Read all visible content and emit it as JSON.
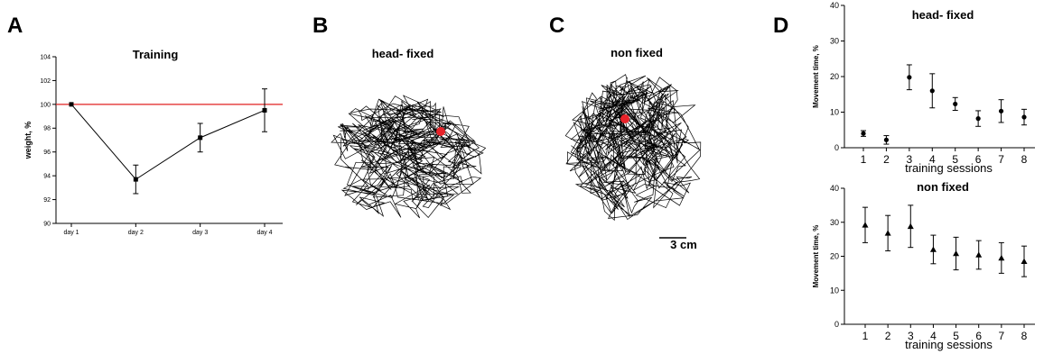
{
  "panels": {
    "A": {
      "letter": "A"
    },
    "B": {
      "letter": "B",
      "title": "head- fixed"
    },
    "C": {
      "letter": "C",
      "title": "non fixed",
      "scale_bar_label": "3 cm"
    },
    "D": {
      "letter": "D"
    }
  },
  "chart_data": [
    {
      "id": "A",
      "type": "line",
      "title": "Training",
      "xlabel": "",
      "ylabel": "weight, %",
      "categories": [
        "day 1",
        "day 2",
        "day 3",
        "day 4"
      ],
      "ylim": [
        90,
        104
      ],
      "yticks": [
        90,
        92,
        94,
        96,
        98,
        100,
        102,
        104
      ],
      "series": [
        {
          "values": [
            100,
            93.7,
            97.2,
            99.5
          ],
          "errors": [
            0,
            1.2,
            1.2,
            1.8
          ]
        }
      ],
      "reference_line": {
        "y": 100,
        "color": "#e02020"
      },
      "marker": "square",
      "grid": false
    },
    {
      "id": "D-top",
      "type": "scatter",
      "title": "head- fixed",
      "xlabel": "training sessions",
      "ylabel": "Movement time, %",
      "categories": [
        "1",
        "2",
        "3",
        "4",
        "5",
        "6",
        "7",
        "8"
      ],
      "ylim": [
        0,
        40
      ],
      "yticks": [
        0,
        10,
        20,
        30,
        40
      ],
      "series": [
        {
          "values": [
            4,
            2.2,
            19.8,
            16,
            12.3,
            8.2,
            10.3,
            8.6
          ],
          "errors": [
            0.8,
            1.2,
            3.5,
            4.8,
            1.8,
            2.2,
            3.2,
            2.2
          ]
        }
      ],
      "marker": "circle",
      "grid": false
    },
    {
      "id": "D-bottom",
      "type": "scatter",
      "title": "non fixed",
      "xlabel": "training sessions",
      "ylabel": "Movement time, %",
      "categories": [
        "1",
        "2",
        "3",
        "4",
        "5",
        "6",
        "7",
        "8"
      ],
      "ylim": [
        0,
        40
      ],
      "yticks": [
        0,
        10,
        20,
        30,
        40
      ],
      "series": [
        {
          "values": [
            29.2,
            26.8,
            28.8,
            22,
            20.8,
            20.4,
            19.5,
            18.5
          ],
          "errors": [
            5.2,
            5.2,
            6.2,
            4.2,
            4.8,
            4.2,
            4.5,
            4.5
          ]
        }
      ],
      "marker": "triangle",
      "grid": false
    }
  ],
  "colors": {
    "axis": "#000000",
    "marker": "#000000",
    "reference": "#e02020",
    "start_point": "#e8232a",
    "trajectory": "#000000"
  }
}
